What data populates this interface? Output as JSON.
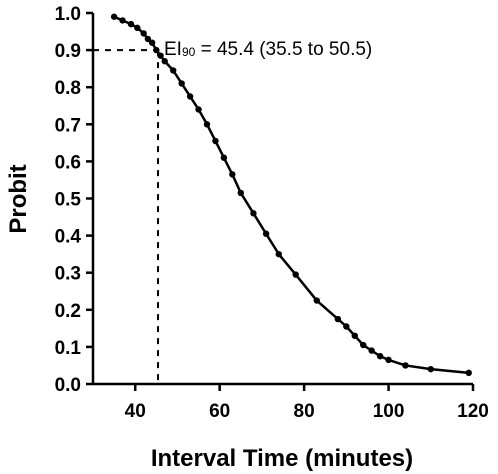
{
  "chart_data": {
    "type": "line",
    "xlabel": "Interval Time (minutes)",
    "ylabel": "Probit",
    "xlim": [
      30,
      120
    ],
    "ylim": [
      0,
      1.0
    ],
    "x_ticks": [
      40,
      60,
      80,
      100,
      120
    ],
    "y_ticks": [
      0.0,
      0.1,
      0.2,
      0.3,
      0.4,
      0.5,
      0.6,
      0.7,
      0.8,
      0.9,
      1.0
    ],
    "x_tick_labels": [
      "40",
      "60",
      "80",
      "100",
      "120"
    ],
    "y_tick_labels": [
      "0.0",
      "0.1",
      "0.2",
      "0.3",
      "0.4",
      "0.5",
      "0.6",
      "0.7",
      "0.8",
      "0.9",
      "1.0"
    ],
    "grid": false,
    "series": [
      {
        "x": [
          35,
          37,
          39,
          40.5,
          42,
          43,
          44,
          45,
          46,
          47,
          49,
          51,
          53,
          55,
          57,
          59,
          61,
          63,
          65,
          68,
          71,
          74,
          78,
          83,
          88,
          90,
          92,
          94,
          96,
          98,
          100,
          104,
          110,
          119
        ],
        "y": [
          0.99,
          0.98,
          0.97,
          0.96,
          0.945,
          0.93,
          0.92,
          0.9,
          0.885,
          0.87,
          0.845,
          0.81,
          0.775,
          0.74,
          0.7,
          0.655,
          0.61,
          0.565,
          0.515,
          0.46,
          0.405,
          0.35,
          0.295,
          0.225,
          0.175,
          0.155,
          0.13,
          0.105,
          0.09,
          0.075,
          0.065,
          0.05,
          0.04,
          0.03
        ]
      }
    ],
    "annotations": {
      "ei_prefix": "EI",
      "ei_sub": "90",
      "ei_text": " = 45.4 (35.5 to 50.5)",
      "ei_x": 45.4,
      "ei_y": 0.9
    }
  }
}
